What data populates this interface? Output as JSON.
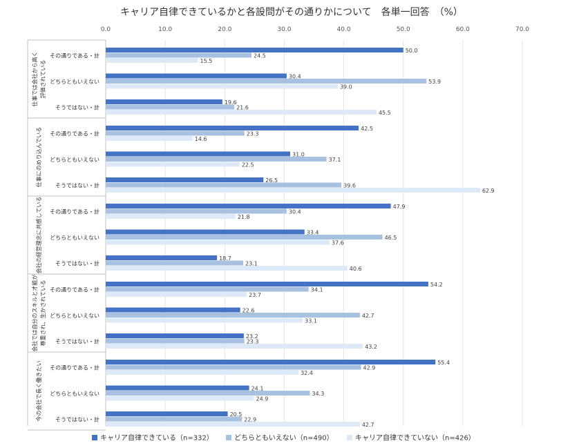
{
  "chart_data": {
    "type": "bar",
    "orientation": "horizontal",
    "title": "キャリア自律できているかと各設問がその通りかについて　各単一回答　（%）",
    "xlim": [
      0,
      70
    ],
    "x_ticks": [
      "0.0",
      "10.0",
      "20.0",
      "30.0",
      "40.0",
      "50.0",
      "60.0",
      "70.0"
    ],
    "grid": true,
    "legend_position": "bottom",
    "series": [
      {
        "name": "キャリア自律できている（n=332）",
        "color": "#4472c4"
      },
      {
        "name": "どちらともいえない（n=490）",
        "color": "#a9c1e0"
      },
      {
        "name": "キャリア自律できていない（n=426）",
        "color": "#dde9f6"
      }
    ],
    "groups": [
      {
        "label_lines": [
          "仕事では会社から高く",
          "評価されている"
        ],
        "rows": [
          {
            "label": "その通りである・計",
            "values": [
              50.0,
              24.5,
              15.5
            ]
          },
          {
            "label": "どちらともいえない",
            "values": [
              30.4,
              53.9,
              39.0
            ]
          },
          {
            "label": "そうではない・計",
            "values": [
              19.6,
              21.6,
              45.5
            ]
          }
        ]
      },
      {
        "label_lines": [
          "仕事にのめり込んでいる"
        ],
        "rows": [
          {
            "label": "その通りである・計",
            "values": [
              42.5,
              23.3,
              14.6
            ]
          },
          {
            "label": "どちらともいえない",
            "values": [
              31.0,
              37.1,
              22.5
            ]
          },
          {
            "label": "そうではない・計",
            "values": [
              26.5,
              39.6,
              62.9
            ]
          }
        ]
      },
      {
        "label_lines": [
          "会社の経営理念に共感している"
        ],
        "rows": [
          {
            "label": "その通りである・計",
            "values": [
              47.9,
              30.4,
              21.8
            ]
          },
          {
            "label": "どちらともいえない",
            "values": [
              33.4,
              46.5,
              37.6
            ]
          },
          {
            "label": "そうではない・計",
            "values": [
              18.7,
              23.1,
              40.6
            ]
          }
        ]
      },
      {
        "label_lines": [
          "会社では自分のスキルと才能が",
          "尊重され、生かされている"
        ],
        "rows": [
          {
            "label": "その通りである・計",
            "values": [
              54.2,
              34.1,
              23.7
            ]
          },
          {
            "label": "どちらともいえない",
            "values": [
              22.6,
              42.7,
              33.1
            ]
          },
          {
            "label": "そうではない・計",
            "values": [
              23.2,
              23.3,
              43.2
            ]
          }
        ]
      },
      {
        "label_lines": [
          "今の会社で長く働きたい"
        ],
        "rows": [
          {
            "label": "その通りである・計",
            "values": [
              55.4,
              42.9,
              32.4
            ]
          },
          {
            "label": "どちらともいえない",
            "values": [
              24.1,
              34.3,
              24.9
            ]
          },
          {
            "label": "そうではない・計",
            "values": [
              20.5,
              22.9,
              42.7
            ]
          }
        ]
      }
    ]
  }
}
